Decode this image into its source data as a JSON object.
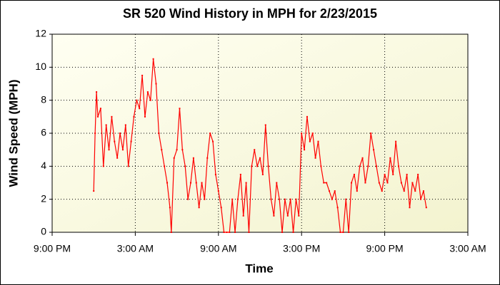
{
  "chart_data": {
    "type": "line",
    "title": "SR 520 Wind History in MPH for 2/23/2015",
    "x_label": "Time",
    "y_label": "Wind Speed (MPH)",
    "xlim": [
      0,
      30
    ],
    "xticks": [
      {
        "value": 0,
        "label": "9:00 PM"
      },
      {
        "value": 6,
        "label": "3:00 AM"
      },
      {
        "value": 12,
        "label": "9:00 AM"
      },
      {
        "value": 18,
        "label": "3:00 PM"
      },
      {
        "value": 24,
        "label": "9:00 PM"
      },
      {
        "value": 30,
        "label": "3:00 AM"
      }
    ],
    "ylim": [
      0,
      12
    ],
    "yticks": [
      0,
      2,
      4,
      6,
      8,
      10,
      12
    ],
    "grid": true,
    "series": [
      {
        "name": "Wind Speed",
        "color": "#ff0000",
        "x": [
          3.0,
          3.1,
          3.2,
          3.3,
          3.5,
          3.7,
          3.9,
          4.1,
          4.3,
          4.5,
          4.7,
          4.9,
          5.1,
          5.3,
          5.5,
          5.7,
          5.9,
          6.1,
          6.3,
          6.5,
          6.7,
          6.9,
          7.1,
          7.3,
          7.5,
          7.7,
          7.9,
          8.1,
          8.3,
          8.5,
          8.6,
          8.8,
          9.0,
          9.2,
          9.4,
          9.6,
          9.8,
          10.0,
          10.2,
          10.4,
          10.6,
          10.8,
          11.0,
          11.2,
          11.4,
          11.6,
          11.8,
          12.0,
          12.2,
          12.4,
          12.6,
          12.8,
          13.0,
          13.2,
          13.4,
          13.6,
          13.8,
          14.0,
          14.2,
          14.4,
          14.6,
          14.8,
          15.0,
          15.2,
          15.4,
          15.6,
          15.8,
          16.0,
          16.2,
          16.4,
          16.6,
          16.8,
          17.0,
          17.2,
          17.4,
          17.6,
          17.8,
          18.0,
          18.2,
          18.4,
          18.6,
          18.8,
          19.0,
          19.2,
          19.4,
          19.6,
          19.8,
          20.0,
          20.2,
          20.4,
          20.6,
          20.8,
          21.0,
          21.2,
          21.4,
          21.6,
          21.8,
          22.0,
          22.2,
          22.4,
          22.6,
          22.8,
          23.0,
          23.2,
          23.4,
          23.6,
          23.8,
          24.0,
          24.2,
          24.4,
          24.6,
          24.8,
          25.0,
          25.2,
          25.4,
          25.6,
          25.8,
          26.0,
          26.2,
          26.4,
          26.6,
          26.8,
          27.0
        ],
        "values": [
          2.5,
          6,
          8.5,
          7,
          7.5,
          4,
          6.5,
          5,
          7,
          5.5,
          4.5,
          6,
          5,
          6.5,
          4,
          5.5,
          7,
          8,
          7.5,
          9.5,
          7,
          8.5,
          8,
          10.5,
          9,
          6,
          5,
          4,
          3,
          1.5,
          0,
          4.5,
          5,
          7.5,
          5,
          4,
          2,
          3,
          4.5,
          3,
          1.5,
          3,
          2,
          4.5,
          6,
          5.5,
          3.5,
          2.5,
          1.5,
          0,
          0,
          0,
          2,
          0,
          2,
          3.5,
          1,
          3,
          0,
          4,
          5,
          4,
          4.5,
          3.5,
          6.5,
          4,
          2,
          1,
          3,
          2,
          0,
          2,
          1,
          2,
          0,
          2,
          1,
          6,
          5,
          7,
          5.5,
          6,
          4.5,
          5.5,
          4,
          3,
          3,
          2.5,
          2,
          2.5,
          1.5,
          0,
          0,
          2,
          0,
          3,
          3.5,
          2.5,
          4,
          4.5,
          3,
          4,
          6,
          5,
          4,
          3,
          2.5,
          3.5,
          3,
          4.5,
          3.5,
          5.5,
          4,
          3,
          2.5,
          3.5,
          1.5,
          3,
          2.5,
          3.5,
          2,
          2.5,
          1.5
        ]
      }
    ]
  }
}
